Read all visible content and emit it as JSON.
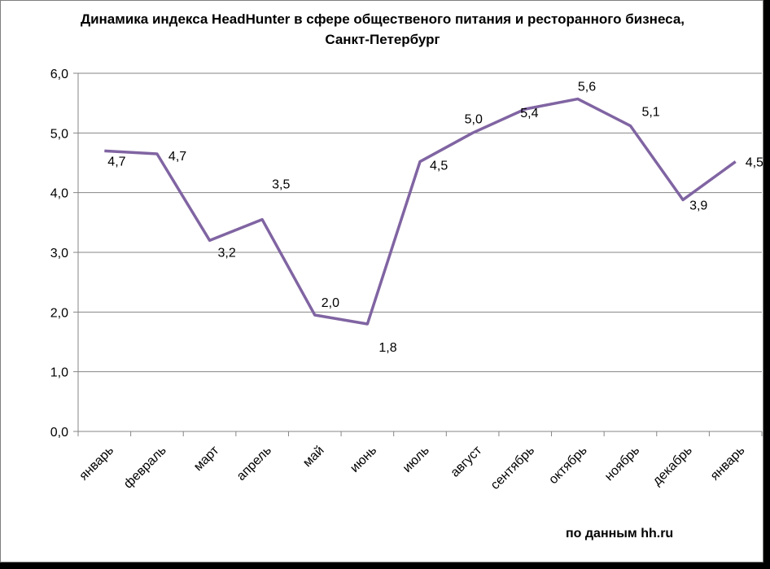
{
  "chart_data": {
    "type": "line",
    "title": "Динамика индекса HeadHunter в сфере общественого питания и  ресторанного бизнеса,\nСанкт-Петербург",
    "categories": [
      "январь",
      "февраль",
      "март",
      "апрель",
      "май",
      "июнь",
      "июль",
      "август",
      "сентябрь",
      "октябрь",
      "ноябрь",
      "декабрь",
      "январь"
    ],
    "series": [
      {
        "values": [
          4.7,
          4.65,
          3.2,
          3.55,
          1.95,
          1.8,
          4.52,
          5.0,
          5.4,
          5.57,
          5.12,
          3.88,
          4.52
        ],
        "labels": [
          "4,7",
          "4,7",
          "3,2",
          "3,5",
          "2,0",
          "1,8",
          "4,5",
          "5,0",
          "5,4",
          "5,6",
          "5,1",
          "3,9",
          "4,5"
        ]
      }
    ],
    "yticks": [
      "0,0",
      "1,0",
      "2,0",
      "3,0",
      "4,0",
      "5,0",
      "6,0"
    ],
    "ylim": [
      0,
      6
    ],
    "grid": true,
    "line_color": "#8064a2",
    "source": "по данным hh.ru"
  }
}
